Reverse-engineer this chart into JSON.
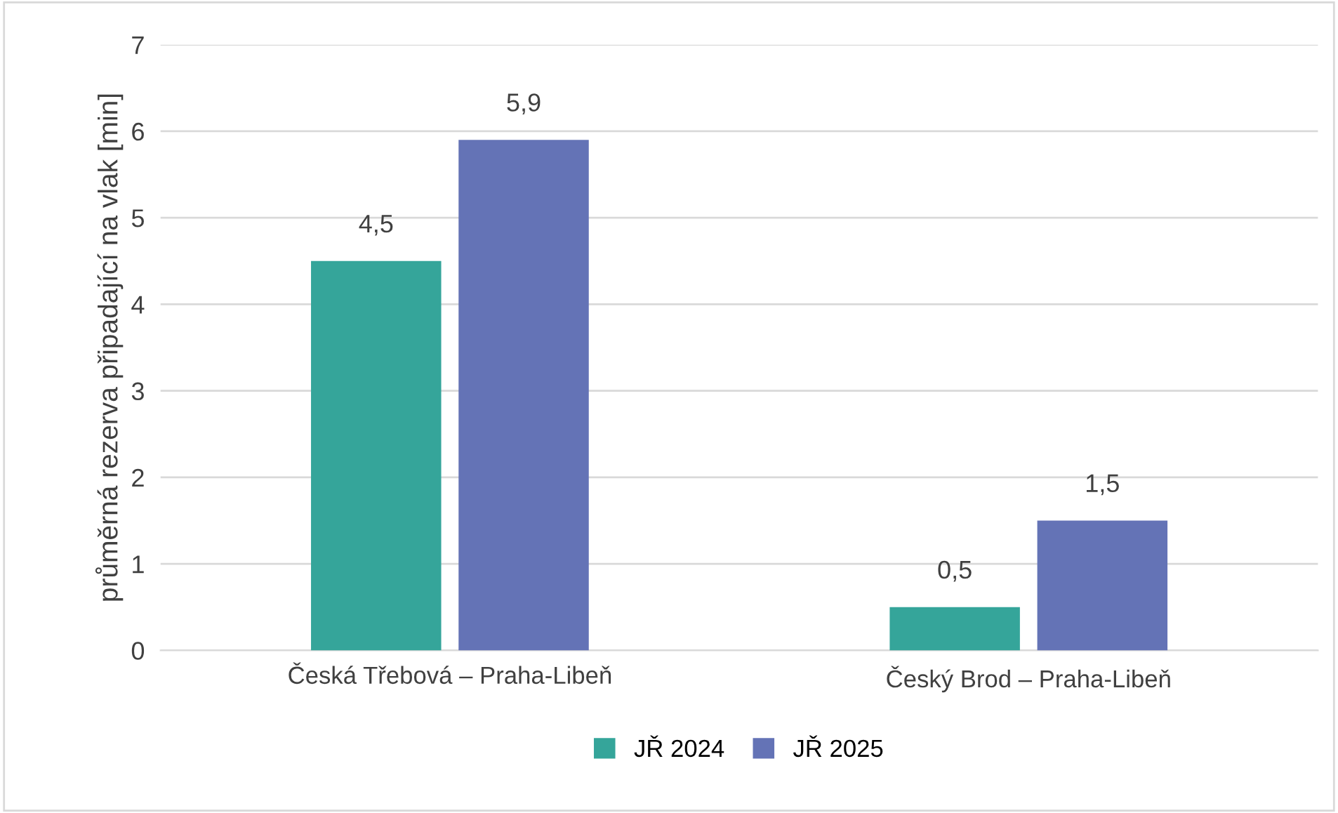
{
  "chart_data": {
    "type": "bar",
    "ylabel": "průměrná rezerva připadající na vlak [min]",
    "categories": [
      "Česká Třebová – Praha-Libeň",
      "Český Brod – Praha-Libeň"
    ],
    "series": [
      {
        "name": "JŘ 2024",
        "color": "#35a59a",
        "values": [
          4.5,
          0.5
        ],
        "value_labels": [
          "4,5",
          "0,5"
        ]
      },
      {
        "name": "JŘ 2025",
        "color": "#6473b6",
        "values": [
          5.9,
          1.5
        ],
        "value_labels": [
          "5,9",
          "1,5"
        ]
      }
    ],
    "ylim": [
      0,
      7
    ],
    "yticks": [
      0,
      1,
      2,
      3,
      4,
      5,
      6,
      7
    ],
    "grid": "y",
    "legend": "bottom"
  }
}
